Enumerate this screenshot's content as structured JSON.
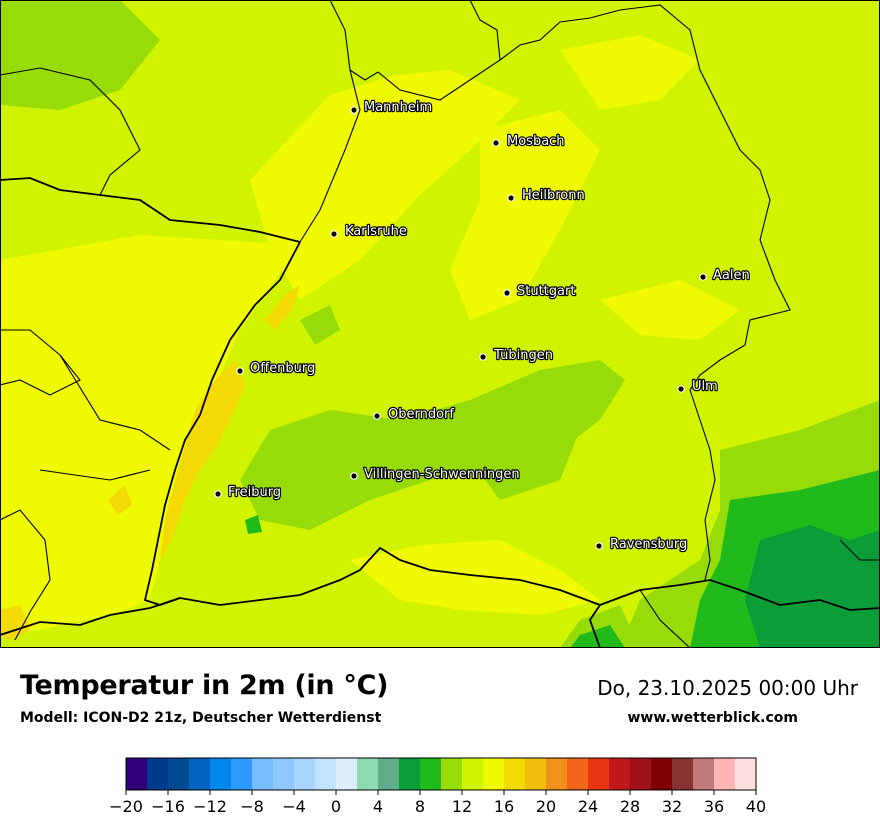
{
  "title": "Temperatur in 2m (in °C)",
  "subtitle": "Modell: ICON-D2 21z, Deutscher Wetterdienst",
  "datetime": "Do, 23.10.2025 00:00 Uhr",
  "website": "www.wetterblick.com",
  "cities": [
    {
      "name": "Mannheim"
    },
    {
      "name": "Mosbach"
    },
    {
      "name": "Heilbronn"
    },
    {
      "name": "Karlsruhe"
    },
    {
      "name": "Stuttgart"
    },
    {
      "name": "Aalen"
    },
    {
      "name": "Offenburg"
    },
    {
      "name": "Tübingen"
    },
    {
      "name": "Ulm"
    },
    {
      "name": "Oberndorf"
    },
    {
      "name": "Villingen-Schwenningen"
    },
    {
      "name": "Freiburg"
    },
    {
      "name": "Ravensburg"
    }
  ],
  "legend": {
    "min": -20,
    "max": 40,
    "step": 2,
    "tick_labels": [
      "−20",
      "−16",
      "−12",
      "−8",
      "−4",
      "0",
      "4",
      "8",
      "12",
      "16",
      "20",
      "24",
      "28",
      "32",
      "36",
      "40"
    ],
    "colors": [
      "#30007a",
      "#003a8a",
      "#004a92",
      "#0064c0",
      "#0087ee",
      "#2f9bff",
      "#76bcff",
      "#8fc8ff",
      "#a9d6ff",
      "#c2e2ff",
      "#dceeff",
      "#8fdbb1",
      "#5fad8b",
      "#0b9d37",
      "#20ba1a",
      "#97dc08",
      "#d0f400",
      "#f0fa00",
      "#f3da05",
      "#f3be0b",
      "#f2901c",
      "#f3661b",
      "#e83410",
      "#bd1919",
      "#a0101a",
      "#7c0000",
      "#883232",
      "#c07a7a",
      "#ffb4b4",
      "#ffdede"
    ]
  },
  "map_colors": {
    "t16": "#f0fa00",
    "t14": "#d0f400",
    "t12": "#97dc08",
    "t10": "#20ba1a",
    "t8": "#0b9d37",
    "t18": "#f3da05",
    "t20": "#f3be0b",
    "border": "#000000"
  }
}
